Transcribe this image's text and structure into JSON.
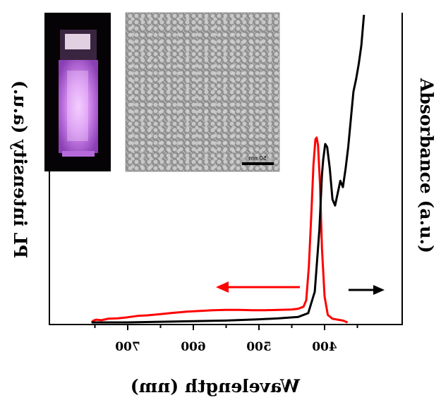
{
  "chart_data": {
    "type": "line",
    "xlabel": "Wavelength (nm)",
    "ylabel_left": "PL intensity (a.u.)",
    "ylabel_right": "Absorbance (a.u.)",
    "x_axis_reversed": true,
    "x_axis_rendering": "mirrored",
    "xlim": [
      340,
      800
    ],
    "x_ticks": [
      700,
      600,
      500,
      400
    ],
    "x_tick_labels": [
      "700",
      "600",
      "500",
      "400"
    ],
    "legend": "none",
    "grid": false,
    "series": [
      {
        "color": "#ff0000",
        "axis": "left",
        "points": [
          [
            755,
            0.0
          ],
          [
            752,
            0.01
          ],
          [
            748,
            0.015
          ],
          [
            740,
            0.012
          ],
          [
            730,
            0.02
          ],
          [
            715,
            0.022
          ],
          [
            700,
            0.028
          ],
          [
            685,
            0.035
          ],
          [
            670,
            0.038
          ],
          [
            650,
            0.045
          ],
          [
            630,
            0.052
          ],
          [
            610,
            0.058
          ],
          [
            590,
            0.062
          ],
          [
            570,
            0.066
          ],
          [
            550,
            0.068
          ],
          [
            530,
            0.068
          ],
          [
            510,
            0.066
          ],
          [
            490,
            0.066
          ],
          [
            470,
            0.068
          ],
          [
            450,
            0.07
          ],
          [
            440,
            0.074
          ],
          [
            432,
            0.085
          ],
          [
            428,
            0.12
          ],
          [
            424,
            0.3
          ],
          [
            420,
            0.6
          ],
          [
            417,
            0.85
          ],
          [
            414,
            0.99
          ],
          [
            412,
            1.0
          ],
          [
            410,
            0.96
          ],
          [
            407,
            0.75
          ],
          [
            404,
            0.4
          ],
          [
            400,
            0.14
          ],
          [
            395,
            0.04
          ],
          [
            388,
            0.02
          ],
          [
            380,
            0.015
          ],
          [
            372,
            0.01
          ],
          [
            365,
            0.0
          ]
        ]
      },
      {
        "color": "#000000",
        "axis": "right",
        "points": [
          [
            755,
            0.0
          ],
          [
            700,
            0.0
          ],
          [
            650,
            0.002
          ],
          [
            600,
            0.004
          ],
          [
            550,
            0.006
          ],
          [
            500,
            0.01
          ],
          [
            470,
            0.013
          ],
          [
            440,
            0.018
          ],
          [
            425,
            0.03
          ],
          [
            415,
            0.1
          ],
          [
            408,
            0.3
          ],
          [
            404,
            0.48
          ],
          [
            402,
            0.53
          ],
          [
            399,
            0.58
          ],
          [
            396,
            0.57
          ],
          [
            392,
            0.5
          ],
          [
            388,
            0.4
          ],
          [
            384,
            0.38
          ],
          [
            380,
            0.42
          ],
          [
            376,
            0.46
          ],
          [
            372,
            0.44
          ],
          [
            368,
            0.5
          ],
          [
            364,
            0.57
          ],
          [
            360,
            0.66
          ],
          [
            356,
            0.75
          ],
          [
            352,
            0.79
          ],
          [
            348,
            0.84
          ],
          [
            344,
            0.9
          ],
          [
            340,
            1.0
          ]
        ]
      }
    ],
    "annotations": [
      {
        "type": "arrow",
        "color": "#ff0000",
        "direction": "toward-PL-axis"
      },
      {
        "type": "arrow",
        "color": "#000000",
        "direction": "toward-absorbance-axis"
      }
    ],
    "insets": [
      {
        "kind": "photo",
        "subject": "glowing-cuvette"
      },
      {
        "kind": "photo",
        "subject": "tem-micrograph",
        "scale_bar": "50 nm"
      }
    ]
  }
}
